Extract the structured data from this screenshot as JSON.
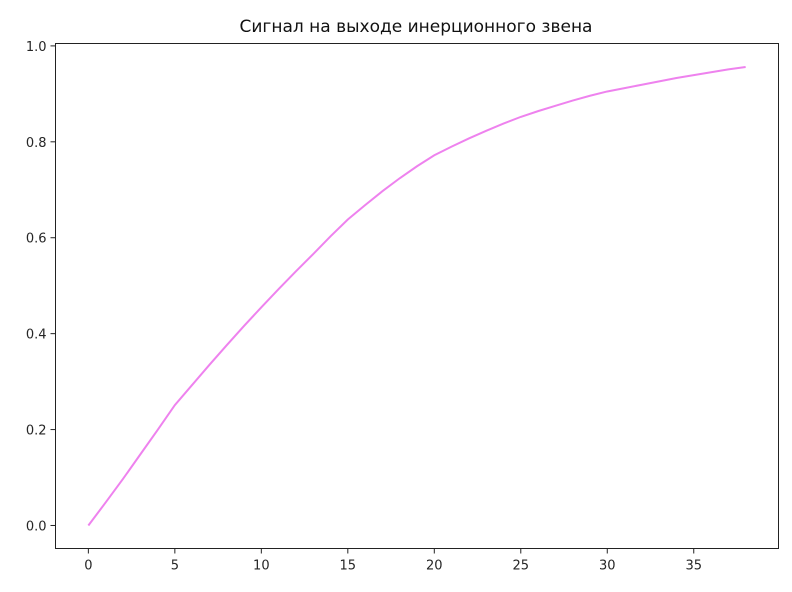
{
  "chart_data": {
    "type": "line",
    "title": "Сигнал на выходе инерционного звена",
    "xlabel": "",
    "ylabel": "",
    "xlim": [
      -1.9,
      39.9
    ],
    "ylim": [
      -0.048,
      1.005
    ],
    "grid": false,
    "x_ticks": [
      "0",
      "5",
      "10",
      "15",
      "20",
      "25",
      "30",
      "35"
    ],
    "y_ticks": [
      "0.0",
      "0.2",
      "0.4",
      "0.6",
      "0.8",
      "1.0"
    ],
    "series": [
      {
        "color": "#ee82ee",
        "x": [
          0,
          1,
          2,
          3,
          4,
          5,
          6,
          7,
          8,
          9,
          10,
          11,
          12,
          13,
          14,
          15,
          16,
          17,
          18,
          19,
          20,
          21,
          22,
          23,
          24,
          25,
          26,
          27,
          28,
          29,
          30,
          31,
          32,
          33,
          34,
          35,
          36,
          37,
          38
        ],
        "y": [
          0,
          0.048,
          0.097,
          0.148,
          0.199,
          0.251,
          0.293,
          0.335,
          0.376,
          0.416,
          0.455,
          0.493,
          0.53,
          0.566,
          0.603,
          0.638,
          0.668,
          0.697,
          0.724,
          0.749,
          0.772,
          0.79,
          0.807,
          0.823,
          0.838,
          0.852,
          0.864,
          0.875,
          0.886,
          0.896,
          0.905,
          0.912,
          0.919,
          0.926,
          0.933,
          0.939,
          0.945,
          0.951,
          0.956
        ]
      }
    ]
  }
}
